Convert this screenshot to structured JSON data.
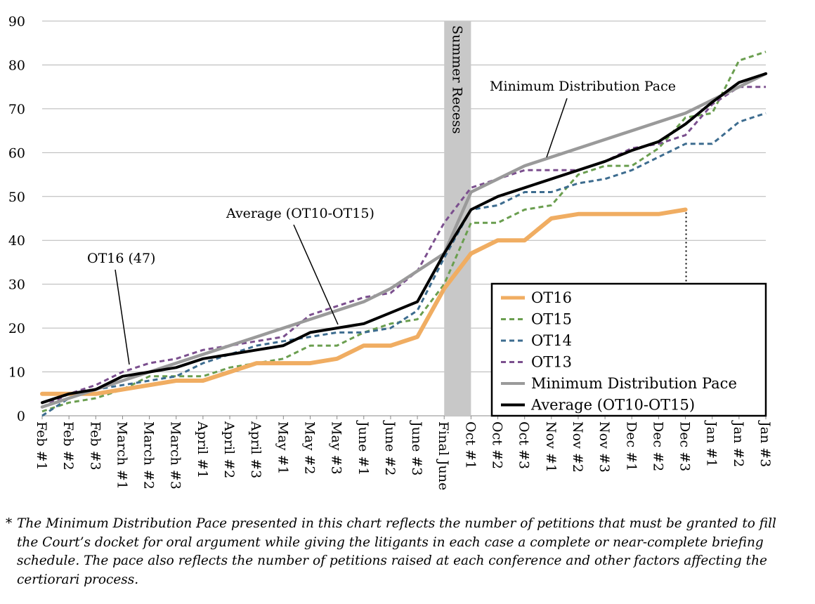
{
  "chart_data": {
    "type": "line",
    "title": "",
    "xlabel": "",
    "ylabel": "",
    "ylim": [
      0,
      90
    ],
    "yticks": [
      0,
      10,
      20,
      30,
      40,
      50,
      60,
      70,
      80,
      90
    ],
    "grid": "horizontal",
    "legend_position": "bottom-right",
    "categories": [
      "Feb #1",
      "Feb #2",
      "Feb #3",
      "March #1",
      "March #2",
      "March #3",
      "April #1",
      "April #2",
      "April #3",
      "May #1",
      "May #2",
      "May #3",
      "June #1",
      "June #2",
      "June #3",
      "Final June",
      "Oct #1",
      "Oct #2",
      "Oct #3",
      "Nov #1",
      "Nov #2",
      "Nov #3",
      "Dec #1",
      "Dec #2",
      "Dec #3",
      "Jan #1",
      "Jan #2",
      "Jan #3"
    ],
    "series": [
      {
        "name": "OT16",
        "color": "#f0ad62",
        "dash": "solid",
        "values": [
          5,
          5,
          5,
          6,
          7,
          8,
          8,
          10,
          12,
          12,
          12,
          13,
          16,
          16,
          18,
          29,
          37,
          40,
          40,
          45,
          46,
          46,
          46,
          46,
          47,
          null,
          null,
          null
        ]
      },
      {
        "name": "OT15",
        "color": "#6a9e4f",
        "dash": "dashed",
        "values": [
          1,
          3,
          4,
          6,
          9,
          9,
          9,
          11,
          12,
          13,
          16,
          16,
          19,
          21,
          22,
          30,
          44,
          44,
          47,
          48,
          55,
          57,
          57,
          61,
          68,
          69,
          81,
          83
        ]
      },
      {
        "name": "OT14",
        "color": "#3d6c8f",
        "dash": "dashed",
        "values": [
          0,
          4,
          6,
          7,
          8,
          9,
          12,
          14,
          16,
          17,
          18,
          19,
          19,
          20,
          24,
          36,
          47,
          48,
          51,
          51,
          53,
          54,
          56,
          59,
          62,
          62,
          67,
          69
        ]
      },
      {
        "name": "OT13",
        "color": "#7b4f8e",
        "dash": "dashed",
        "values": [
          2,
          5,
          7,
          10,
          12,
          13,
          15,
          16,
          17,
          18,
          23,
          25,
          27,
          28,
          33,
          44,
          52,
          54,
          56,
          56,
          56,
          58,
          61,
          62,
          64,
          71,
          75,
          75
        ]
      },
      {
        "name": "Minimum Distribution Pace",
        "color": "#9a9a9a",
        "dash": "solid",
        "values": [
          2,
          4,
          6,
          8,
          10,
          12,
          14,
          16,
          18,
          20,
          22,
          24,
          26,
          29,
          33,
          37,
          51,
          54,
          57,
          59,
          61,
          63,
          65,
          67,
          69,
          72,
          75,
          78
        ]
      },
      {
        "name": "Average (OT10-OT15)",
        "color": "#000000",
        "dash": "solid",
        "values": [
          3,
          5,
          6,
          9,
          10,
          11,
          13,
          14,
          15,
          16,
          19,
          20,
          21,
          23.5,
          26,
          37,
          47,
          50,
          52,
          54,
          56,
          58,
          60.5,
          62.5,
          66.5,
          71.5,
          76,
          78
        ]
      }
    ],
    "shaded_region": {
      "label": "Summer Recess",
      "between": [
        "Final June",
        "Oct #1"
      ],
      "color": "#c8c8c8"
    },
    "annotations": [
      {
        "text": "Minimum Distribution Pace"
      },
      {
        "text": "Average (OT10-OT15)"
      },
      {
        "text": "OT16 (47)"
      }
    ],
    "footnote_marker": "*",
    "footnote": "The Minimum Distribution Pace presented in this chart reflects the number of petitions that must be granted to fill the Court’s docket for oral argument while giving the litigants in each case a complete or near-complete briefing schedule. The pace also reflects the number of petitions raised at each conference and other factors affecting the certiorari process."
  }
}
